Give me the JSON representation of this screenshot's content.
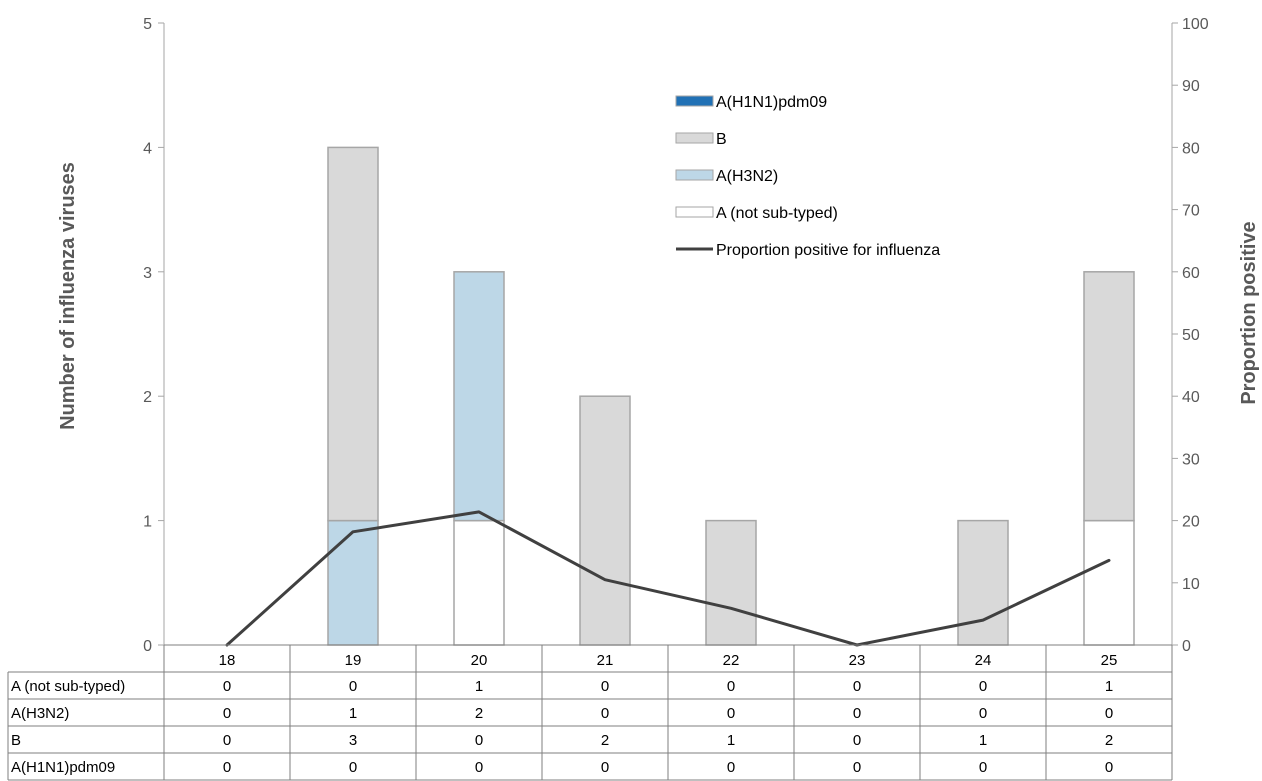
{
  "chart_data": {
    "type": "bar",
    "stacked": true,
    "categories": [
      "18",
      "19",
      "20",
      "21",
      "22",
      "23",
      "24",
      "25"
    ],
    "series": [
      {
        "name": "A (not sub-typed)",
        "values": [
          0,
          0,
          1,
          0,
          0,
          0,
          0,
          1
        ],
        "color": "#ffffff"
      },
      {
        "name": "A(H3N2)",
        "values": [
          0,
          1,
          2,
          0,
          0,
          0,
          0,
          0
        ],
        "color": "#bdd7e7"
      },
      {
        "name": "B",
        "values": [
          0,
          3,
          0,
          2,
          1,
          0,
          1,
          2
        ],
        "color": "#d9d9d9"
      },
      {
        "name": "A(H1N1)pdm09",
        "values": [
          0,
          0,
          0,
          0,
          0,
          0,
          0,
          0
        ],
        "color": "#2171b5"
      }
    ],
    "line_series": {
      "name": "Proportion positive for influenza",
      "values": [
        0,
        18.2,
        21.4,
        10.5,
        5.9,
        0,
        4.0,
        13.6
      ],
      "color": "#404040"
    },
    "ylabel": "Number of influenza viruses",
    "y2label": "Proportion positive",
    "ylim": [
      0,
      5
    ],
    "y2lim": [
      0,
      100
    ],
    "yticks": [
      "0",
      "1",
      "2",
      "3",
      "4",
      "5"
    ],
    "y2ticks": [
      "0",
      "10",
      "20",
      "30",
      "40",
      "50",
      "60",
      "70",
      "80",
      "90",
      "100"
    ],
    "legend": [
      {
        "label": "A(H1N1)pdm09",
        "color": "#2171b5",
        "kind": "box"
      },
      {
        "label": "B",
        "color": "#d9d9d9",
        "kind": "box"
      },
      {
        "label": "A(H3N2)",
        "color": "#bdd7e7",
        "kind": "box"
      },
      {
        "label": "A (not sub-typed)",
        "color": "#ffffff",
        "kind": "box"
      },
      {
        "label": "Proportion positive for influenza",
        "color": "#404040",
        "kind": "line"
      }
    ],
    "legend_position": "top-right",
    "data_table": true
  }
}
